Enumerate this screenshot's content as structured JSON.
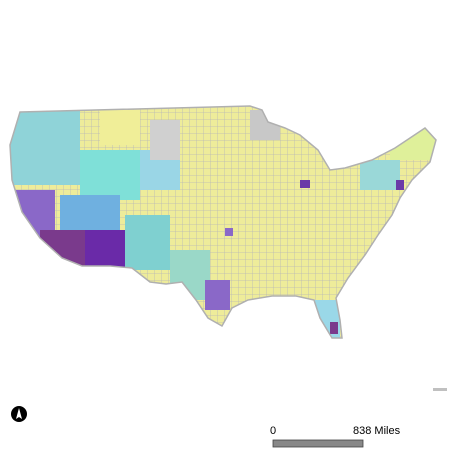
{
  "scale_bar": {
    "start_label": "0",
    "end_label": "838 Miles"
  }
}
